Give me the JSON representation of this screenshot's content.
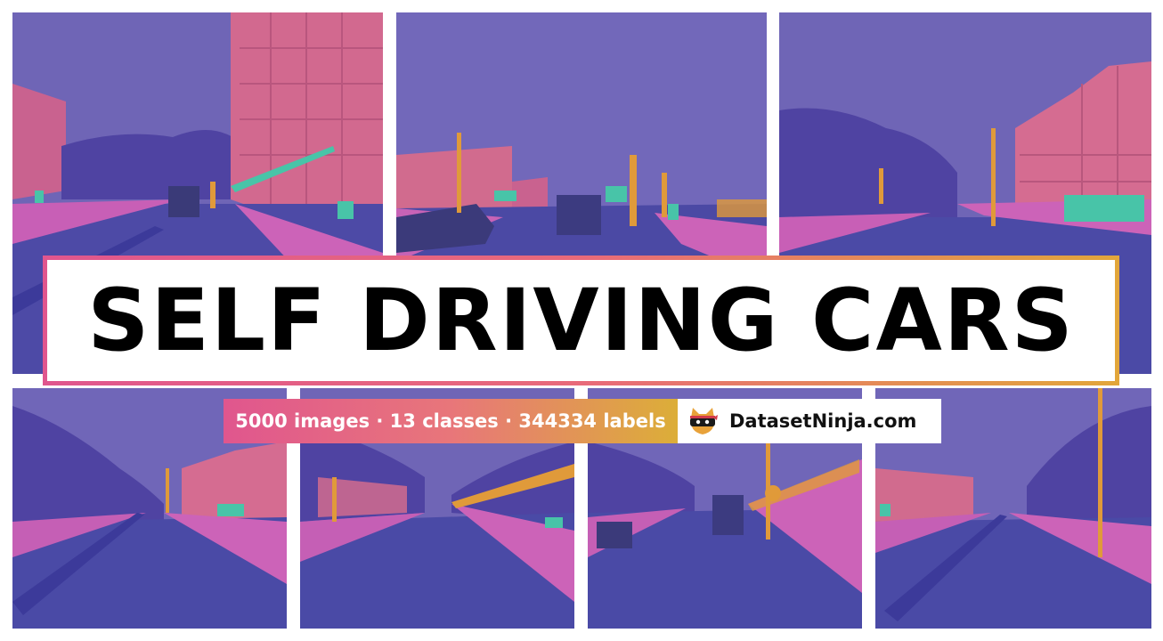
{
  "title": "SELF DRIVING CARS",
  "stats": "5000 images · 13 classes · 344334 labels",
  "brand": {
    "name": "DatasetNinja.com",
    "logo_icon": "ninja-cat-icon"
  },
  "colors": {
    "sky": "#7066b8",
    "road": "#4a4aa8",
    "building": "#d66a9a",
    "sidewalk": "#cc62b4",
    "vegetation": "#5448a8",
    "pole": "#e09a3a",
    "sign": "#48c4a8",
    "gradient_start": "#e0568e",
    "gradient_end": "#dcae38"
  }
}
